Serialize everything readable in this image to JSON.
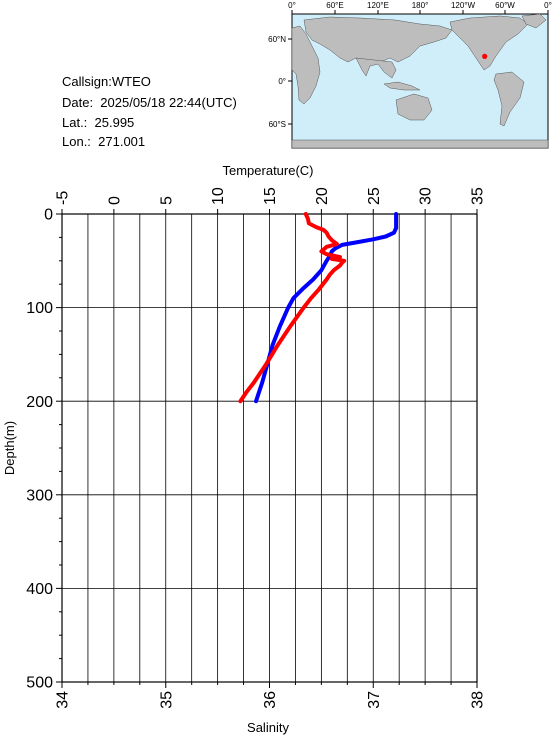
{
  "info": {
    "callsign": "Callsign:WTEO",
    "date": "Date:  2025/05/18 22:44(UTC)",
    "lat": "Lat.:  25.995",
    "lon": "Lon.:  271.001"
  },
  "map": {
    "top_labels": [
      "0°",
      "60°E",
      "120°E",
      "180°",
      "120°W",
      "60°W",
      "0°"
    ],
    "left_labels": [
      "60°N",
      "0°",
      "60°S"
    ],
    "ocean_color": "#cfeef9",
    "land_color": "#bdbdbd",
    "marker_color": "#ff0000",
    "station_lon": 271.001,
    "station_lat": 25.995
  },
  "chart_data": {
    "type": "line",
    "top_axis": {
      "label": "Temperature(C)",
      "range": [
        -5,
        35
      ],
      "ticks": [
        "-5",
        "0",
        "5",
        "10",
        "15",
        "20",
        "25",
        "30",
        "35"
      ]
    },
    "bottom_axis": {
      "label": "Salinity",
      "range": [
        34,
        38
      ],
      "ticks": [
        "34",
        "35",
        "36",
        "37",
        "38"
      ]
    },
    "y_axis": {
      "label": "Depth(m)",
      "range": [
        0,
        500
      ],
      "inverted": true,
      "ticks": [
        "0",
        "100",
        "200",
        "300",
        "400",
        "500"
      ]
    },
    "grid": true,
    "series": [
      {
        "color": "#0000ff",
        "axis": "temperature",
        "depth": [
          0,
          5,
          10,
          15,
          20,
          24,
          27,
          30,
          33,
          37,
          40,
          45,
          50,
          60,
          70,
          80,
          90,
          100,
          120,
          140,
          160,
          180,
          200
        ],
        "values": [
          27.2,
          27.2,
          27.2,
          27.2,
          27.0,
          26.2,
          25.0,
          23.5,
          22.0,
          21.3,
          21.0,
          20.8,
          20.5,
          20.0,
          19.2,
          18.2,
          17.3,
          16.8,
          16.0,
          15.3,
          14.8,
          14.3,
          13.7
        ]
      },
      {
        "color": "#ff0000",
        "axis": "salinity",
        "depth": [
          0,
          5,
          10,
          14,
          17,
          20,
          24,
          28,
          32,
          35,
          38,
          40,
          43,
          46,
          48,
          50,
          52,
          55,
          60,
          65,
          70,
          80,
          90,
          100,
          120,
          140,
          160,
          180,
          190,
          200
        ],
        "values": [
          36.35,
          36.37,
          36.38,
          36.45,
          36.52,
          36.55,
          36.57,
          36.6,
          36.65,
          36.55,
          36.52,
          36.5,
          36.55,
          36.68,
          36.6,
          36.72,
          36.7,
          36.68,
          36.62,
          36.58,
          36.55,
          36.48,
          36.4,
          36.33,
          36.2,
          36.08,
          35.97,
          35.85,
          35.78,
          35.72
        ]
      }
    ]
  }
}
